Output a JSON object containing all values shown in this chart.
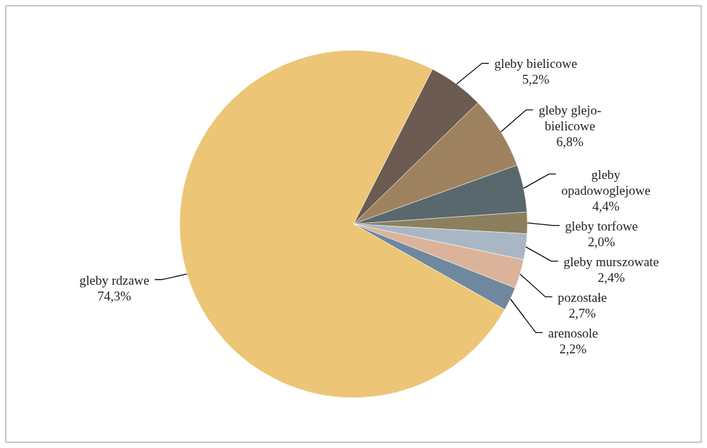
{
  "chart_data": {
    "type": "pie",
    "categories": [
      "gleby bielicowe",
      "gleby glejo-bielicowe",
      "gleby opadowoglejowe",
      "gleby torfowe",
      "gleby murszowate",
      "pozostałe",
      "arenosole",
      "gleby rdzawe"
    ],
    "values": [
      5.2,
      6.8,
      4.4,
      2.0,
      2.4,
      2.7,
      2.2,
      74.3
    ],
    "value_labels": [
      "5,2%",
      "6,8%",
      "4,4%",
      "2,0%",
      "2,4%",
      "2,7%",
      "2,2%",
      "74,3%"
    ],
    "colors": [
      "#6b5b50",
      "#9e8260",
      "#58686c",
      "#8b7f5e",
      "#a9b7c4",
      "#dbb39a",
      "#6f889f",
      "#ecc576"
    ],
    "legend": false
  }
}
